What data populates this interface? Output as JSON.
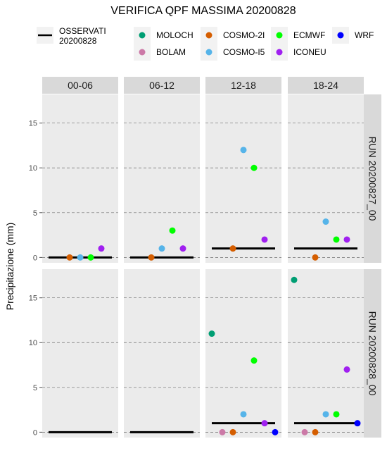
{
  "chart_data": {
    "type": "scatter",
    "title": "VERIFICA QPF MASSIMA 20200828",
    "ylabel": "Precipitazione (mm)",
    "xlabel": "",
    "ylim": [
      -0.6,
      18.2
    ],
    "yticks": [
      0,
      5,
      10,
      15
    ],
    "grid": "horizontal dashed",
    "columns": [
      "00-06",
      "06-12",
      "12-18",
      "18-24"
    ],
    "rows": [
      "RUN 20200827_00",
      "RUN 20200828_00"
    ],
    "observed_legend": {
      "label_line1": "OSSERVATI",
      "label_line2": "20200828"
    },
    "models": [
      {
        "name": "MOLOCH",
        "color": "#009E73"
      },
      {
        "name": "BOLAM",
        "color": "#CC79A7"
      },
      {
        "name": "COSMO-2I",
        "color": "#D55E00"
      },
      {
        "name": "COSMO-I5",
        "color": "#56B4E9"
      },
      {
        "name": "ECMWF",
        "color": "#00FF00"
      },
      {
        "name": "ICONEU",
        "color": "#A020F0"
      },
      {
        "name": "WRF",
        "color": "#0000FF"
      }
    ],
    "panels": [
      {
        "row": 0,
        "col": 0,
        "observed": 0,
        "points": [
          {
            "model": "COSMO-2I",
            "value": 0
          },
          {
            "model": "COSMO-I5",
            "value": 0
          },
          {
            "model": "ECMWF",
            "value": 0
          },
          {
            "model": "ICONEU",
            "value": 1
          }
        ]
      },
      {
        "row": 0,
        "col": 1,
        "observed": 0,
        "points": [
          {
            "model": "COSMO-2I",
            "value": 0
          },
          {
            "model": "COSMO-I5",
            "value": 1
          },
          {
            "model": "ECMWF",
            "value": 3
          },
          {
            "model": "ICONEU",
            "value": 1
          }
        ]
      },
      {
        "row": 0,
        "col": 2,
        "observed": 1,
        "points": [
          {
            "model": "COSMO-2I",
            "value": 1
          },
          {
            "model": "COSMO-I5",
            "value": 12
          },
          {
            "model": "ECMWF",
            "value": 10
          },
          {
            "model": "ICONEU",
            "value": 2
          }
        ]
      },
      {
        "row": 0,
        "col": 3,
        "observed": 1,
        "points": [
          {
            "model": "COSMO-2I",
            "value": 0
          },
          {
            "model": "COSMO-I5",
            "value": 4
          },
          {
            "model": "ECMWF",
            "value": 2
          },
          {
            "model": "ICONEU",
            "value": 2
          }
        ]
      },
      {
        "row": 1,
        "col": 0,
        "observed": 0,
        "points": []
      },
      {
        "row": 1,
        "col": 1,
        "observed": 0,
        "points": []
      },
      {
        "row": 1,
        "col": 2,
        "observed": 1,
        "points": [
          {
            "model": "MOLOCH",
            "value": 11
          },
          {
            "model": "BOLAM",
            "value": 0
          },
          {
            "model": "COSMO-2I",
            "value": 0
          },
          {
            "model": "COSMO-I5",
            "value": 2
          },
          {
            "model": "ECMWF",
            "value": 8
          },
          {
            "model": "ICONEU",
            "value": 1
          },
          {
            "model": "WRF",
            "value": 0
          }
        ]
      },
      {
        "row": 1,
        "col": 3,
        "observed": 1,
        "points": [
          {
            "model": "MOLOCH",
            "value": 17
          },
          {
            "model": "BOLAM",
            "value": 0
          },
          {
            "model": "COSMO-2I",
            "value": 0
          },
          {
            "model": "COSMO-I5",
            "value": 2
          },
          {
            "model": "ECMWF",
            "value": 2
          },
          {
            "model": "ICONEU",
            "value": 7
          },
          {
            "model": "WRF",
            "value": 1
          }
        ]
      }
    ]
  }
}
